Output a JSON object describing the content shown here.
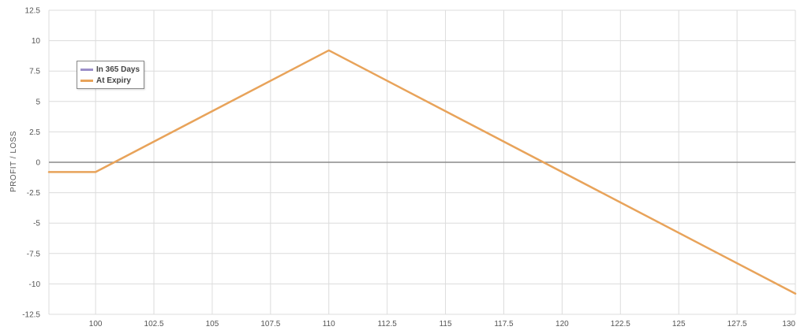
{
  "chart_data": {
    "type": "line",
    "title": "",
    "xlabel": "",
    "ylabel": "PROFIT / LOSS",
    "xlim": [
      98,
      130
    ],
    "ylim": [
      -12.5,
      12.5
    ],
    "x_ticks": [
      100,
      102.5,
      105,
      107.5,
      110,
      112.5,
      115,
      117.5,
      120,
      122.5,
      125,
      127.5,
      130
    ],
    "x_tick_labels": [
      "100",
      "102.5",
      "105",
      "107.5",
      "110",
      "112.5",
      "115",
      "117.5",
      "120",
      "122.5",
      "125",
      "127.5",
      "130"
    ],
    "y_ticks": [
      12.5,
      10,
      7.5,
      5,
      2.5,
      0,
      -2.5,
      -5,
      -7.5,
      -10,
      -12.5
    ],
    "y_tick_labels": [
      "12.5",
      "10",
      "7.5",
      "5",
      "2.5",
      "0",
      "-2.5",
      "-5",
      "-7.5",
      "-10",
      "-12.5"
    ],
    "grid": true,
    "legend_position": "top-left",
    "series": [
      {
        "name": "In 365 Days",
        "color": "#9b8fc9",
        "x": [],
        "y": []
      },
      {
        "name": "At Expiry",
        "color": "#e8a35a",
        "x": [
          98,
          100,
          110,
          130
        ],
        "y": [
          -0.8,
          -0.8,
          9.2,
          -10.8
        ]
      }
    ]
  }
}
